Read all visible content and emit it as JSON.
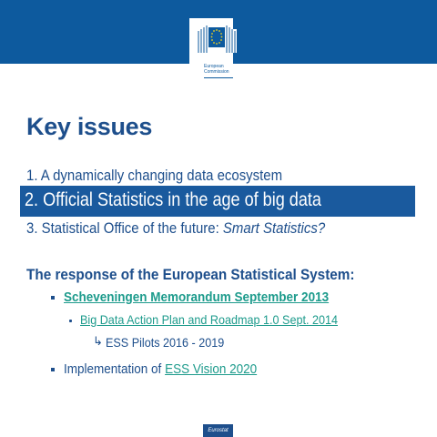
{
  "logo": {
    "line1": "European",
    "line2": "Commission"
  },
  "title": "Key issues",
  "list": {
    "item1": "1.  A dynamically changing data ecosystem",
    "item2": "2. Official Statistics in the age of big data",
    "item3_prefix": "3.  Statistical Office of the future: ",
    "item3_italic": "Smart Statistics?"
  },
  "response": {
    "heading": "The response of the European Statistical System:",
    "bullet1": "Scheveningen Memorandum September 2013",
    "bullet2": "Big Data Action Plan and Roadmap 1.0 Sept. 2014",
    "bullet3": "ESS Pilots 2016 - 2019",
    "bullet4_prefix": "Implementation of ",
    "bullet4_link": "ESS Vision 2020"
  },
  "footer": {
    "badge": "Eurostat"
  },
  "colors": {
    "band": "#0d5a9e",
    "title": "#1e4f8c",
    "link": "#1d9b8c",
    "highlight": "#1a5a9e"
  }
}
